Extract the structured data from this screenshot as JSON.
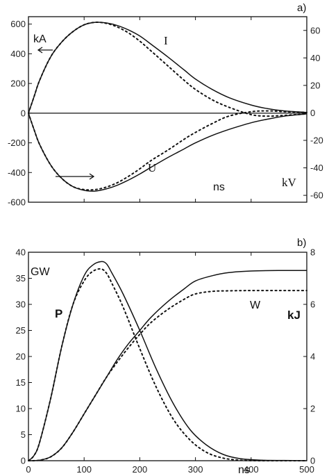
{
  "chart_data": [
    {
      "type": "line",
      "panel_label": "a)",
      "xlim": [
        0,
        500
      ],
      "ylim_left": [
        -600,
        650
      ],
      "ylim_right": [
        -65,
        70
      ],
      "yticks_left": [
        "-600",
        "-400",
        "-200",
        "0",
        "200",
        "400",
        "600"
      ],
      "yticks_right": [
        "-60",
        "-40",
        "-20",
        "0",
        "20",
        "40",
        "60"
      ],
      "annotations": {
        "left_unit": "kA",
        "right_unit": "kV",
        "x_unit": "ns",
        "current": "I",
        "voltage": "U"
      },
      "series": [
        {
          "name": "I",
          "axis": "left",
          "style": "solid",
          "x": [
            0,
            10,
            20,
            40,
            60,
            80,
            100,
            120,
            140,
            160,
            180,
            200,
            220,
            250,
            280,
            300,
            330,
            360,
            400,
            430,
            460,
            500
          ],
          "y": [
            0,
            110,
            220,
            380,
            480,
            550,
            595,
            612,
            608,
            590,
            560,
            520,
            465,
            380,
            290,
            230,
            160,
            105,
            55,
            30,
            15,
            5
          ]
        },
        {
          "name": "I",
          "axis": "left",
          "style": "dotted",
          "x": [
            0,
            10,
            20,
            40,
            60,
            80,
            100,
            120,
            140,
            160,
            180,
            200,
            220,
            250,
            280,
            300,
            330,
            360,
            400,
            430,
            460,
            500
          ],
          "y": [
            0,
            110,
            220,
            380,
            480,
            550,
            595,
            612,
            605,
            580,
            540,
            485,
            420,
            320,
            220,
            160,
            90,
            40,
            -10,
            -20,
            -15,
            -5
          ]
        },
        {
          "name": "U",
          "axis": "left",
          "style": "solid",
          "x": [
            0,
            10,
            20,
            40,
            60,
            80,
            100,
            120,
            140,
            160,
            180,
            200,
            220,
            250,
            280,
            300,
            330,
            360,
            400,
            430,
            460,
            500
          ],
          "y": [
            0,
            -110,
            -210,
            -350,
            -440,
            -495,
            -520,
            -525,
            -510,
            -485,
            -450,
            -410,
            -365,
            -300,
            -240,
            -200,
            -150,
            -110,
            -65,
            -40,
            -20,
            -5
          ]
        },
        {
          "name": "U",
          "axis": "left",
          "style": "dotted",
          "x": [
            0,
            10,
            20,
            40,
            60,
            80,
            100,
            120,
            140,
            160,
            180,
            200,
            220,
            250,
            280,
            300,
            330,
            360,
            400,
            430,
            460,
            500
          ],
          "y": [
            0,
            -110,
            -210,
            -350,
            -440,
            -495,
            -515,
            -515,
            -498,
            -468,
            -425,
            -375,
            -320,
            -250,
            -175,
            -130,
            -70,
            -20,
            10,
            15,
            10,
            5
          ]
        }
      ]
    },
    {
      "type": "line",
      "panel_label": "b)",
      "xlim": [
        0,
        500
      ],
      "ylim_left": [
        0,
        40
      ],
      "ylim_right": [
        0,
        8
      ],
      "xticks": [
        "0",
        "100",
        "200",
        "300",
        "400",
        "500"
      ],
      "yticks_left": [
        "0",
        "5",
        "10",
        "15",
        "20",
        "25",
        "30",
        "35",
        "40"
      ],
      "yticks_right": [
        "0",
        "2",
        "4",
        "6",
        "8"
      ],
      "annotations": {
        "left_unit": "GW",
        "right_unit": "kJ",
        "x_unit": "ns",
        "power": "P",
        "energy": "W"
      },
      "series": [
        {
          "name": "P",
          "axis": "left",
          "style": "solid",
          "x": [
            0,
            10,
            20,
            40,
            60,
            80,
            100,
            115,
            130,
            140,
            150,
            170,
            200,
            230,
            260,
            290,
            320,
            350,
            380,
            420,
            460,
            500
          ],
          "y": [
            0,
            1,
            3.5,
            12,
            22,
            30,
            35.5,
            37.5,
            38.2,
            37.8,
            36,
            32,
            25,
            17.5,
            11,
            6,
            3,
            1.2,
            0.4,
            0.1,
            0.05,
            0
          ]
        },
        {
          "name": "P",
          "axis": "left",
          "style": "dotted",
          "x": [
            0,
            10,
            20,
            40,
            60,
            80,
            100,
            115,
            130,
            140,
            150,
            170,
            200,
            230,
            260,
            290,
            320,
            350,
            380,
            420,
            460,
            500
          ],
          "y": [
            0,
            1,
            3.5,
            12,
            22,
            30,
            34.5,
            36.3,
            36.8,
            36,
            34,
            29.5,
            21.5,
            14,
            8,
            4,
            1.6,
            0.5,
            0.1,
            0,
            0,
            0
          ]
        },
        {
          "name": "W",
          "axis": "right",
          "style": "solid",
          "x": [
            0,
            20,
            40,
            60,
            80,
            100,
            120,
            140,
            160,
            180,
            200,
            220,
            250,
            280,
            300,
            330,
            360,
            400,
            450,
            500
          ],
          "y": [
            0,
            0.02,
            0.15,
            0.5,
            1.1,
            1.8,
            2.5,
            3.2,
            3.9,
            4.5,
            5.0,
            5.5,
            6.1,
            6.6,
            6.9,
            7.1,
            7.22,
            7.28,
            7.3,
            7.3
          ]
        },
        {
          "name": "W",
          "axis": "right",
          "style": "dotted",
          "x": [
            0,
            20,
            40,
            60,
            80,
            100,
            120,
            140,
            160,
            180,
            200,
            220,
            250,
            280,
            300,
            330,
            360,
            400,
            450,
            500
          ],
          "y": [
            0,
            0.02,
            0.15,
            0.5,
            1.1,
            1.8,
            2.5,
            3.2,
            3.8,
            4.35,
            4.85,
            5.3,
            5.8,
            6.2,
            6.4,
            6.5,
            6.52,
            6.53,
            6.53,
            6.53
          ]
        }
      ]
    }
  ]
}
